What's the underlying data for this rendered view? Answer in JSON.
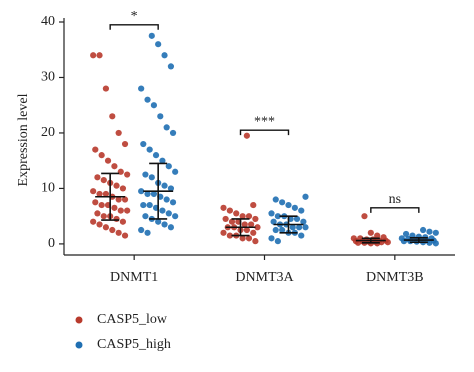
{
  "chart_data": {
    "type": "strip",
    "ylabel": "Expression level",
    "categories": [
      "DNMT1",
      "DNMT3A",
      "DNMT3B"
    ],
    "ylim": [
      -2,
      40
    ],
    "yticks": [
      0,
      10,
      20,
      30,
      40
    ],
    "series": [
      {
        "name": "CASP5_low",
        "color": "#b83a2c",
        "values": [
          [
            34,
            34,
            28,
            23,
            20,
            18,
            17,
            16,
            15,
            14,
            13,
            12.5,
            12,
            11.5,
            11,
            10.5,
            10,
            9.5,
            9,
            9,
            8.5,
            8,
            8,
            7.5,
            7,
            7,
            6.5,
            6,
            6,
            5.5,
            5,
            5,
            4.5,
            4,
            4,
            3.5,
            3,
            2.5,
            2,
            1.5
          ],
          [
            19.5,
            7,
            6.5,
            6,
            5.5,
            5,
            5,
            4.5,
            4.5,
            4,
            4,
            3.5,
            3.5,
            3,
            3,
            3,
            2.5,
            2.5,
            2,
            2,
            1.5,
            1.5,
            1,
            1,
            0.5
          ],
          [
            5,
            2,
            1.5,
            1.2,
            1,
            1,
            0.8,
            0.8,
            0.6,
            0.6,
            0.5,
            0.5,
            0.4,
            0.4,
            0.3,
            0.3,
            0.2,
            0.2,
            0.1,
            0.1
          ]
        ],
        "mean": [
          8.5,
          3,
          0.6
        ],
        "sd": [
          4.2,
          1.5,
          0.4
        ]
      },
      {
        "name": "CASP5_high",
        "color": "#1f6fb2",
        "values": [
          [
            37.5,
            36,
            34,
            32,
            28,
            26,
            25,
            23,
            21,
            20,
            18,
            17,
            16,
            15,
            14,
            13,
            12.5,
            12,
            11,
            10.5,
            10,
            9.5,
            9,
            9,
            8.5,
            8,
            7.5,
            7,
            7,
            6.5,
            6,
            5.5,
            5,
            5,
            4.5,
            4,
            3.5,
            3,
            2.5,
            2
          ],
          [
            8.5,
            8,
            7.5,
            7,
            6.5,
            6,
            5.5,
            5,
            5,
            4.5,
            4.5,
            4,
            4,
            3.5,
            3.5,
            3,
            3,
            3,
            2.5,
            2.5,
            2,
            2,
            1.5,
            1,
            0.5
          ],
          [
            2.5,
            2.2,
            2,
            1.8,
            1.5,
            1.3,
            1.2,
            1,
            1,
            0.9,
            0.8,
            0.7,
            0.6,
            0.6,
            0.5,
            0.5,
            0.4,
            0.3,
            0.2,
            0.1
          ]
        ],
        "mean": [
          9.5,
          3.5,
          0.7
        ],
        "sd": [
          5,
          1.5,
          0.4
        ]
      }
    ],
    "annotations": [
      {
        "text": "*",
        "category": 0,
        "y": 39.5
      },
      {
        "text": "***",
        "category": 1,
        "y": 20.5
      },
      {
        "text": "ns",
        "category": 2,
        "y": 6.5
      }
    ]
  }
}
